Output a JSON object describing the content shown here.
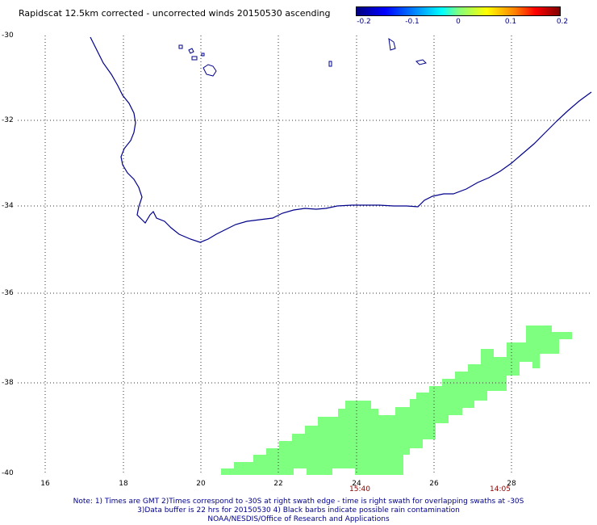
{
  "title": "Rapidscat 12.5km corrected - uncorrected winds 20150530 ascending",
  "colorbar": {
    "ticks": [
      "-0.2",
      "-0.1",
      "0",
      "0.1",
      "0.2"
    ],
    "colors": [
      "#00007f",
      "#0000ff",
      "#00ffff",
      "#7fff7f",
      "#ffff00",
      "#ff0000",
      "#7f0000"
    ]
  },
  "map": {
    "lat_labels": [
      "-30",
      "-32",
      "-34",
      "-36",
      "-38",
      "-40"
    ],
    "lon_labels": [
      "16",
      "18",
      "20",
      "22",
      "24",
      "26",
      "28"
    ],
    "lat_range": [
      -40,
      -30
    ],
    "lon_range": [
      15,
      30
    ],
    "grid": "dotted",
    "coastline_color": "#00008b",
    "swath_color": "#7fff7f",
    "swath_value": "0"
  },
  "times": [
    "15:40",
    "14:05"
  ],
  "notes": [
    "Note: 1) Times are GMT 2)Times correspond to -30S at right swath edge - time is right swath for overlapping swaths at -30S",
    "3)Data buffer is 22 hrs for 20150530 4) Black barbs indicate possible rain contamination",
    "NOAA/NESDIS/Office of Research and Applications"
  ]
}
